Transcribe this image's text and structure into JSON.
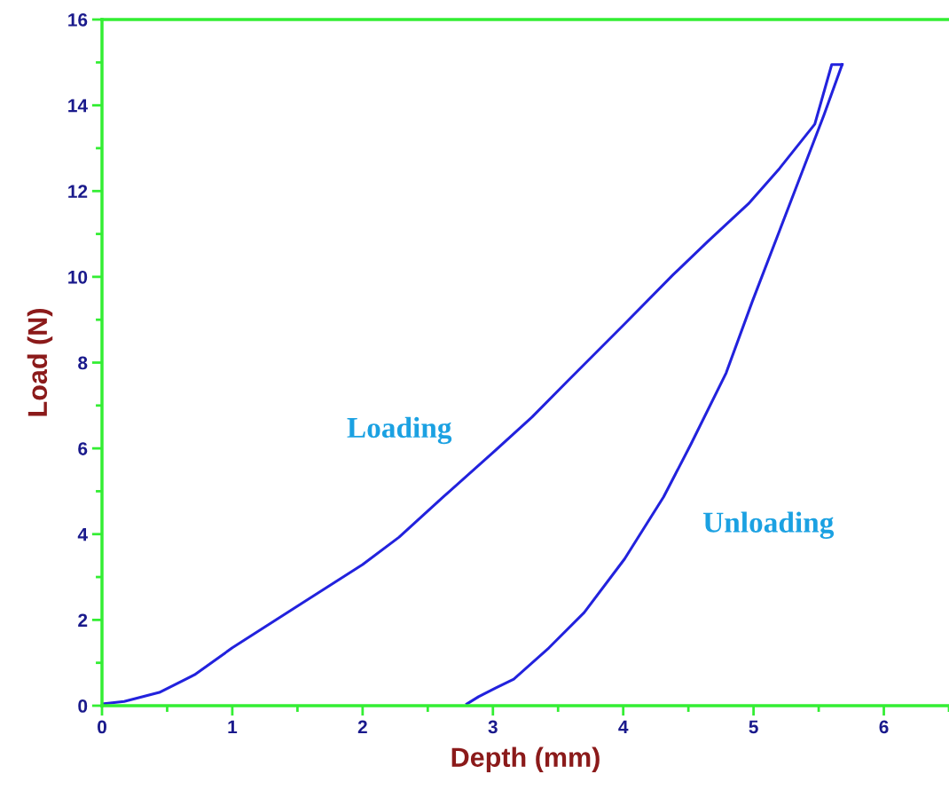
{
  "chart_data": {
    "type": "line",
    "xlabel": "Depth (mm)",
    "ylabel": "Load (N)",
    "xlim": [
      0,
      6.5
    ],
    "ylim": [
      0,
      16
    ],
    "xticks": [
      0,
      1,
      2,
      3,
      4,
      5,
      6
    ],
    "yticks": [
      0,
      2,
      4,
      6,
      8,
      10,
      12,
      14,
      16
    ],
    "grid": false,
    "legend": false,
    "marker": "none",
    "line_style": "solid",
    "series": [
      {
        "name": "Loading",
        "color": "#2222dd",
        "x": [
          0,
          0.17,
          0.44,
          0.71,
          1.0,
          1.53,
          2.0,
          2.28,
          2.62,
          3.0,
          3.3,
          3.57,
          4.01,
          4.38,
          4.65,
          4.96,
          5.2,
          5.47,
          5.6,
          5.68
        ],
        "values": [
          0.04,
          0.1,
          0.31,
          0.72,
          1.35,
          2.38,
          3.29,
          3.93,
          4.87,
          5.9,
          6.73,
          7.56,
          8.9,
          10.04,
          10.83,
          11.7,
          12.53,
          13.56,
          14.95,
          14.95
        ]
      },
      {
        "name": "Unloading",
        "color": "#2222dd",
        "x": [
          5.68,
          5.54,
          5.33,
          5.2,
          4.99,
          4.79,
          4.52,
          4.31,
          4.01,
          3.7,
          3.43,
          3.16,
          3.02,
          2.89,
          2.8
        ],
        "values": [
          14.95,
          13.77,
          12.11,
          11.08,
          9.42,
          7.76,
          6.1,
          4.87,
          3.42,
          2.17,
          1.35,
          0.62,
          0.41,
          0.21,
          0.04
        ]
      }
    ]
  }
}
